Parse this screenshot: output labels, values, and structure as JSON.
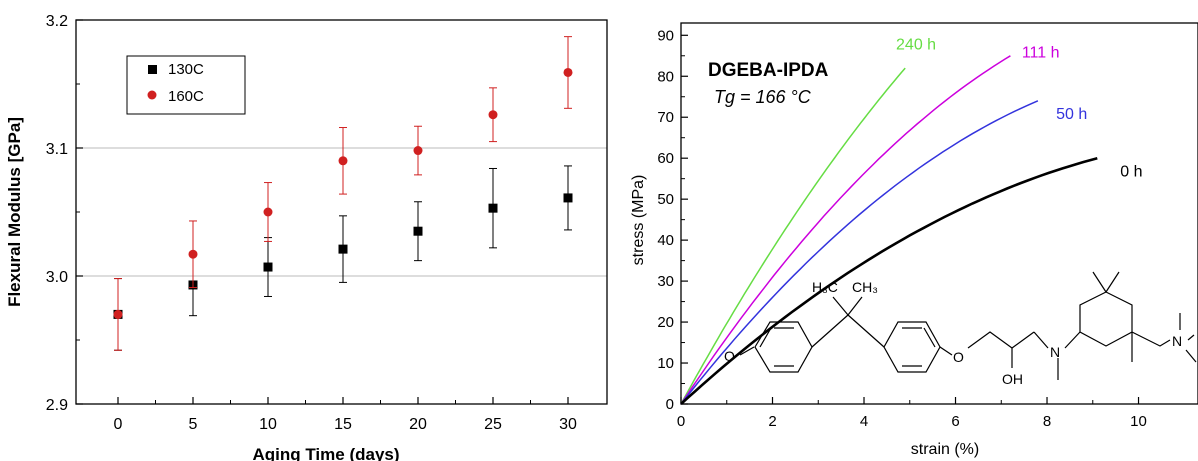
{
  "chart_data": [
    {
      "type": "scatter",
      "title": "",
      "xlabel": "Aging Time (days)",
      "ylabel": "Flexural Modulus [GPa]",
      "xlim": [
        -2.8,
        32.6
      ],
      "ylim": [
        2.9,
        3.2
      ],
      "x_ticks": [
        0,
        5,
        10,
        15,
        20,
        25,
        30
      ],
      "y_ticks": [
        2.9,
        3.0,
        3.1,
        3.2
      ],
      "y_tick_labels": [
        "2.9",
        "3.0",
        "3.1",
        "3.2"
      ],
      "gridlines_y": [
        3.0,
        3.1
      ],
      "legend_position": "top-left",
      "series": [
        {
          "name": "130C",
          "color": "#000000",
          "marker": "square",
          "points": [
            {
              "x": 0,
              "y": 2.97,
              "err": 0.028
            },
            {
              "x": 5,
              "y": 2.993,
              "err": 0.024
            },
            {
              "x": 10,
              "y": 3.007,
              "err": 0.023
            },
            {
              "x": 15,
              "y": 3.021,
              "err": 0.026
            },
            {
              "x": 20,
              "y": 3.035,
              "err": 0.023
            },
            {
              "x": 25,
              "y": 3.053,
              "err": 0.031
            },
            {
              "x": 30,
              "y": 3.061,
              "err": 0.025
            }
          ]
        },
        {
          "name": "160C",
          "color": "#d02020",
          "marker": "circle",
          "points": [
            {
              "x": 0,
              "y": 2.97,
              "err": 0.028
            },
            {
              "x": 5,
              "y": 3.017,
              "err": 0.026
            },
            {
              "x": 10,
              "y": 3.05,
              "err": 0.023
            },
            {
              "x": 15,
              "y": 3.09,
              "err": 0.026
            },
            {
              "x": 20,
              "y": 3.098,
              "err": 0.019
            },
            {
              "x": 25,
              "y": 3.126,
              "err": 0.021
            },
            {
              "x": 30,
              "y": 3.159,
              "err": 0.028
            }
          ]
        }
      ]
    },
    {
      "type": "line",
      "title": "DGEBA-IPDA",
      "subtitle": "Tg = 166 °C",
      "xlabel": "strain (%)",
      "ylabel": "stress (MPa)",
      "xlim": [
        0,
        11.3
      ],
      "ylim": [
        0,
        93
      ],
      "x_ticks": [
        0,
        2,
        4,
        6,
        8,
        10
      ],
      "y_ticks": [
        0,
        10,
        20,
        30,
        40,
        50,
        60,
        70,
        80,
        90
      ],
      "series": [
        {
          "name": "240 h",
          "color": "#66dd44",
          "end_strain": 4.9,
          "end_stress": 82,
          "curvature": 0.22
        },
        {
          "name": "111 h",
          "color": "#cc00dd",
          "end_strain": 7.2,
          "end_stress": 85,
          "curvature": 0.43
        },
        {
          "name": "50 h",
          "color": "#3333dd",
          "end_strain": 7.8,
          "end_stress": 74,
          "curvature": 0.5
        },
        {
          "name": "0 h",
          "color": "#000000",
          "end_strain": 9.1,
          "end_stress": 60,
          "curvature": 0.55
        }
      ],
      "structure_labels": {
        "ch3_left": "H₃C",
        "ch3_right": "CH₃",
        "oh": "OH",
        "n": "N",
        "o": "O"
      }
    }
  ]
}
